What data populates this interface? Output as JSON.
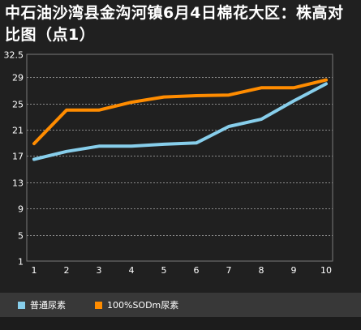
{
  "chart_data": {
    "type": "line",
    "title": "中石油沙湾县金沟河镇6月4日棉花大区：株高对比图（点1）",
    "xlabel": "",
    "ylabel": "",
    "categories": [
      "1",
      "2",
      "3",
      "4",
      "5",
      "6",
      "7",
      "8",
      "9",
      "10"
    ],
    "y_ticks": [
      "32.5",
      "29",
      "25",
      "21",
      "17",
      "13",
      "9",
      "5",
      "1"
    ],
    "ylim": [
      1,
      32.5
    ],
    "grid": true,
    "legend_position": "bottom",
    "series": [
      {
        "name": "普通尿素",
        "color": "#87ceeb",
        "values": [
          16.5,
          17.7,
          18.5,
          18.5,
          18.8,
          19.0,
          21.5,
          22.6,
          25.4,
          28.0
        ]
      },
      {
        "name": "100%SODm尿素",
        "color": "#ff8c00",
        "values": [
          18.9,
          24.0,
          24.0,
          25.2,
          26.0,
          26.2,
          26.3,
          27.4,
          27.4,
          28.6
        ]
      }
    ]
  }
}
